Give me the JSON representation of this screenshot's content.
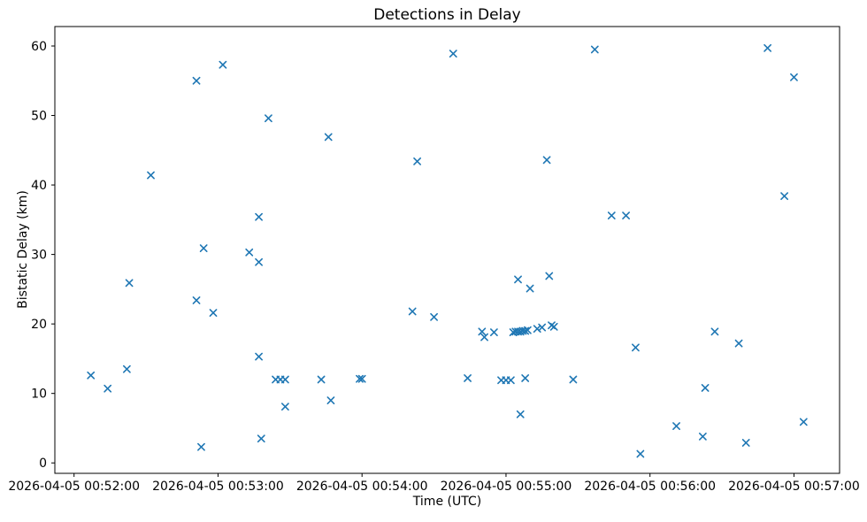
{
  "figure": {
    "title": "Detections in Delay",
    "xlabel": "Time (UTC)",
    "ylabel": "Bistatic Delay (km)"
  },
  "chart_data": {
    "type": "scatter",
    "title": "Detections in Delay",
    "xlabel": "Time (UTC)",
    "ylabel": "Bistatic Delay (km)",
    "marker": "x",
    "marker_color": "#1f77b4",
    "axis_color": "#000000",
    "background_color": "#ffffff",
    "grid": false,
    "legend": null,
    "base_date": "2026-04-05",
    "time_origin": "00:52:00",
    "xlim_seconds_from_origin": [
      -8,
      319
    ],
    "ylim": [
      -1.5,
      62.8
    ],
    "x_ticks": [
      {
        "seconds": 0,
        "label": "2026-04-05 00:52:00"
      },
      {
        "seconds": 60,
        "label": "2026-04-05 00:53:00"
      },
      {
        "seconds": 120,
        "label": "2026-04-05 00:54:00"
      },
      {
        "seconds": 180,
        "label": "2026-04-05 00:55:00"
      },
      {
        "seconds": 240,
        "label": "2026-04-05 00:56:00"
      },
      {
        "seconds": 300,
        "label": "2026-04-05 00:57:00"
      }
    ],
    "y_ticks": [
      0,
      10,
      20,
      30,
      40,
      50,
      60
    ],
    "points": [
      {
        "time": "00:52:07",
        "value": 12.6
      },
      {
        "time": "00:52:14",
        "value": 10.7
      },
      {
        "time": "00:52:22",
        "value": 13.5
      },
      {
        "time": "00:52:23",
        "value": 25.9
      },
      {
        "time": "00:52:32",
        "value": 41.4
      },
      {
        "time": "00:52:51",
        "value": 55.0
      },
      {
        "time": "00:52:51",
        "value": 23.4
      },
      {
        "time": "00:52:53",
        "value": 2.3
      },
      {
        "time": "00:52:54",
        "value": 30.9
      },
      {
        "time": "00:52:58",
        "value": 21.6
      },
      {
        "time": "00:53:02",
        "value": 57.3
      },
      {
        "time": "00:53:13",
        "value": 30.3
      },
      {
        "time": "00:53:17",
        "value": 35.4
      },
      {
        "time": "00:53:17",
        "value": 28.9
      },
      {
        "time": "00:53:17",
        "value": 15.3
      },
      {
        "time": "00:53:18",
        "value": 3.5
      },
      {
        "time": "00:53:21",
        "value": 49.6
      },
      {
        "time": "00:53:24",
        "value": 12.0
      },
      {
        "time": "00:53:26",
        "value": 12.0
      },
      {
        "time": "00:53:28",
        "value": 12.0
      },
      {
        "time": "00:53:28",
        "value": 8.1
      },
      {
        "time": "00:53:43",
        "value": 12.0
      },
      {
        "time": "00:53:46",
        "value": 46.9
      },
      {
        "time": "00:53:47",
        "value": 9.0
      },
      {
        "time": "00:53:59",
        "value": 12.1
      },
      {
        "time": "00:54:00",
        "value": 12.1
      },
      {
        "time": "00:54:21",
        "value": 21.8
      },
      {
        "time": "00:54:23",
        "value": 43.4
      },
      {
        "time": "00:54:30",
        "value": 21.0
      },
      {
        "time": "00:54:38",
        "value": 58.9
      },
      {
        "time": "00:54:44",
        "value": 12.2
      },
      {
        "time": "00:54:50",
        "value": 18.9
      },
      {
        "time": "00:54:51",
        "value": 18.1
      },
      {
        "time": "00:54:55",
        "value": 18.8
      },
      {
        "time": "00:54:58",
        "value": 11.9
      },
      {
        "time": "00:55:00",
        "value": 11.9
      },
      {
        "time": "00:55:02",
        "value": 11.9
      },
      {
        "time": "00:55:03",
        "value": 18.8
      },
      {
        "time": "00:55:04",
        "value": 18.9
      },
      {
        "time": "00:55:05",
        "value": 26.4
      },
      {
        "time": "00:55:05",
        "value": 18.9
      },
      {
        "time": "00:55:06",
        "value": 18.9
      },
      {
        "time": "00:55:06",
        "value": 7.0
      },
      {
        "time": "00:55:07",
        "value": 19.0
      },
      {
        "time": "00:55:08",
        "value": 19.0
      },
      {
        "time": "00:55:08",
        "value": 12.2
      },
      {
        "time": "00:55:09",
        "value": 19.1
      },
      {
        "time": "00:55:10",
        "value": 25.1
      },
      {
        "time": "00:55:13",
        "value": 19.3
      },
      {
        "time": "00:55:15",
        "value": 19.5
      },
      {
        "time": "00:55:17",
        "value": 43.6
      },
      {
        "time": "00:55:18",
        "value": 26.9
      },
      {
        "time": "00:55:19",
        "value": 19.8
      },
      {
        "time": "00:55:20",
        "value": 19.6
      },
      {
        "time": "00:55:28",
        "value": 12.0
      },
      {
        "time": "00:55:37",
        "value": 59.5
      },
      {
        "time": "00:55:44",
        "value": 35.6
      },
      {
        "time": "00:55:50",
        "value": 35.6
      },
      {
        "time": "00:55:54",
        "value": 16.6
      },
      {
        "time": "00:55:56",
        "value": 1.3
      },
      {
        "time": "00:56:11",
        "value": 5.3
      },
      {
        "time": "00:56:22",
        "value": 3.8
      },
      {
        "time": "00:56:23",
        "value": 10.8
      },
      {
        "time": "00:56:27",
        "value": 18.9
      },
      {
        "time": "00:56:37",
        "value": 17.2
      },
      {
        "time": "00:56:40",
        "value": 2.9
      },
      {
        "time": "00:56:49",
        "value": 59.7
      },
      {
        "time": "00:56:56",
        "value": 38.4
      },
      {
        "time": "00:57:00",
        "value": 55.5
      },
      {
        "time": "00:57:04",
        "value": 5.9
      }
    ]
  }
}
